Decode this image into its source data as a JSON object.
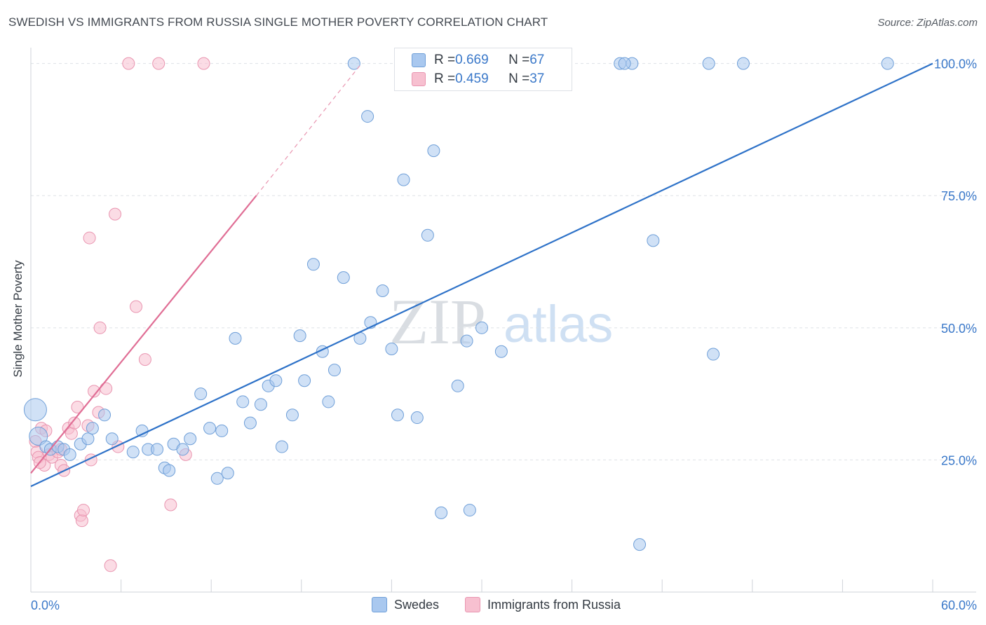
{
  "title": "SWEDISH VS IMMIGRANTS FROM RUSSIA SINGLE MOTHER POVERTY CORRELATION CHART",
  "source": "Source: ZipAtlas.com",
  "watermark": {
    "zip": "ZIP",
    "atlas": "atlas"
  },
  "colors": {
    "blue_fill": "#a9c8ef",
    "blue_stroke": "#6f9fd8",
    "blue_line": "#2e72c8",
    "pink_fill": "#f7c0d0",
    "pink_stroke": "#e995b0",
    "pink_line": "#e06e95",
    "tick_text": "#3a78c9",
    "grid": "#dde1e6"
  },
  "stats": [
    {
      "r_label": "R = ",
      "r_value": "0.669",
      "n_label": "N = ",
      "n_value": "67"
    },
    {
      "r_label": "R = ",
      "r_value": "0.459",
      "n_label": "N = ",
      "n_value": "37"
    }
  ],
  "legend": [
    "Swedes",
    "Immigrants from Russia"
  ],
  "chart_data": {
    "type": "scatter",
    "title": "SWEDISH VS IMMIGRANTS FROM RUSSIA SINGLE MOTHER POVERTY CORRELATION CHART",
    "xlabel": "",
    "ylabel": "Single Mother Poverty",
    "xlim": [
      0,
      60
    ],
    "ylim": [
      0,
      103
    ],
    "x_tick_labels": [
      {
        "value": 0,
        "label": "0.0%"
      },
      {
        "value": 60,
        "label": "60.0%"
      }
    ],
    "y_tick_labels": [
      {
        "value": 25,
        "label": "25.0%"
      },
      {
        "value": 50,
        "label": "50.0%"
      },
      {
        "value": 75,
        "label": "75.0%"
      },
      {
        "value": 100,
        "label": "100.0%"
      }
    ],
    "grid": true,
    "legend_position": "bottom-center",
    "series": [
      {
        "name": "Swedes",
        "points": [
          [
            0.3,
            34.5
          ],
          [
            0.5,
            29.5
          ],
          [
            1.0,
            27.5
          ],
          [
            1.3,
            27.0
          ],
          [
            1.8,
            27.5
          ],
          [
            2.2,
            27.0
          ],
          [
            2.6,
            26.0
          ],
          [
            3.3,
            28.0
          ],
          [
            3.8,
            29.0
          ],
          [
            4.1,
            31.0
          ],
          [
            4.9,
            33.5
          ],
          [
            5.4,
            29.0
          ],
          [
            6.8,
            26.5
          ],
          [
            7.4,
            30.5
          ],
          [
            7.8,
            27.0
          ],
          [
            8.4,
            27.0
          ],
          [
            8.9,
            23.5
          ],
          [
            9.2,
            23.0
          ],
          [
            9.5,
            28.0
          ],
          [
            10.1,
            27.0
          ],
          [
            10.6,
            29.0
          ],
          [
            11.3,
            37.5
          ],
          [
            11.9,
            31.0
          ],
          [
            12.4,
            21.5
          ],
          [
            12.7,
            30.5
          ],
          [
            13.1,
            22.5
          ],
          [
            13.6,
            48.0
          ],
          [
            14.1,
            36.0
          ],
          [
            14.6,
            32.0
          ],
          [
            15.3,
            35.5
          ],
          [
            15.8,
            39.0
          ],
          [
            16.3,
            40.0
          ],
          [
            16.7,
            27.5
          ],
          [
            17.4,
            33.5
          ],
          [
            17.9,
            48.5
          ],
          [
            18.2,
            40.0
          ],
          [
            18.8,
            62.0
          ],
          [
            19.4,
            45.5
          ],
          [
            19.8,
            36.0
          ],
          [
            20.2,
            42.0
          ],
          [
            20.8,
            59.5
          ],
          [
            21.5,
            100.0
          ],
          [
            21.9,
            48.0
          ],
          [
            22.4,
            90.0
          ],
          [
            22.6,
            51.0
          ],
          [
            23.4,
            57.0
          ],
          [
            24.0,
            46.0
          ],
          [
            24.4,
            33.5
          ],
          [
            24.8,
            78.0
          ],
          [
            25.7,
            33.0
          ],
          [
            26.4,
            67.5
          ],
          [
            26.8,
            83.5
          ],
          [
            27.3,
            15.0
          ],
          [
            28.4,
            39.0
          ],
          [
            29.0,
            47.5
          ],
          [
            29.2,
            15.5
          ],
          [
            30.0,
            50.0
          ],
          [
            31.3,
            45.5
          ],
          [
            39.2,
            100.0
          ],
          [
            40.0,
            100.0
          ],
          [
            41.4,
            66.5
          ],
          [
            40.5,
            9.0
          ],
          [
            45.1,
            100.0
          ],
          [
            45.4,
            45.0
          ],
          [
            47.4,
            100.0
          ],
          [
            57.0,
            100.0
          ],
          [
            39.5,
            100.0
          ]
        ]
      },
      {
        "name": "Immigrants from Russia",
        "points": [
          [
            0.3,
            28.5
          ],
          [
            0.4,
            26.5
          ],
          [
            0.5,
            25.5
          ],
          [
            0.7,
            31.0
          ],
          [
            0.9,
            24.0
          ],
          [
            1.0,
            30.5
          ],
          [
            1.2,
            26.0
          ],
          [
            1.4,
            25.5
          ],
          [
            1.8,
            26.5
          ],
          [
            2.0,
            24.0
          ],
          [
            2.2,
            23.0
          ],
          [
            2.5,
            31.0
          ],
          [
            2.7,
            30.0
          ],
          [
            2.9,
            32.0
          ],
          [
            3.1,
            35.0
          ],
          [
            3.3,
            14.5
          ],
          [
            3.4,
            13.5
          ],
          [
            3.5,
            15.5
          ],
          [
            3.9,
            67.0
          ],
          [
            4.0,
            25.0
          ],
          [
            4.2,
            38.0
          ],
          [
            4.5,
            34.0
          ],
          [
            4.6,
            50.0
          ],
          [
            5.0,
            38.5
          ],
          [
            5.3,
            5.0
          ],
          [
            5.6,
            71.5
          ],
          [
            5.8,
            27.5
          ],
          [
            6.5,
            100.0
          ],
          [
            7.0,
            54.0
          ],
          [
            7.6,
            44.0
          ],
          [
            8.5,
            100.0
          ],
          [
            9.3,
            16.5
          ],
          [
            10.3,
            26.0
          ],
          [
            11.5,
            100.0
          ],
          [
            3.8,
            31.5
          ],
          [
            2.0,
            27.0
          ],
          [
            0.6,
            24.5
          ]
        ]
      }
    ],
    "trend_lines": [
      {
        "series": "Swedes",
        "from": [
          0,
          20.0
        ],
        "to": [
          60,
          100.0
        ]
      },
      {
        "series": "Immigrants from Russia",
        "from": [
          0,
          22.5
        ],
        "to": [
          15,
          75.0
        ],
        "extrapolated_to": [
          22,
          100.0
        ]
      }
    ]
  }
}
